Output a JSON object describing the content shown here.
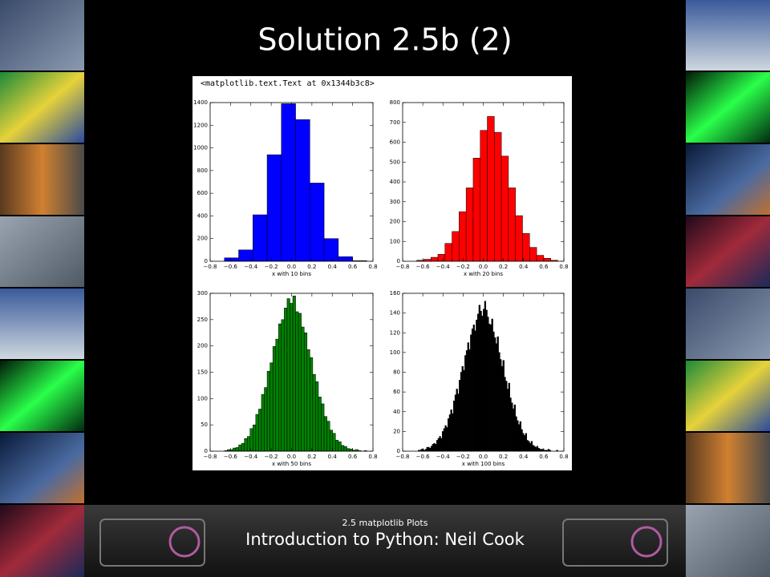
{
  "slide": {
    "title": "Solution 2.5b (2)",
    "output_text": "<matplotlib.text.Text at 0x1344b3c8>",
    "footer": {
      "subtitle": "2.5 matplotlib Plots",
      "title": "Introduction to Python: Neil Cook"
    }
  },
  "chart_data": [
    {
      "type": "histogram",
      "xlabel": "x with 10 bins",
      "color": "#0000ff",
      "bins": [
        -0.66,
        -0.52,
        -0.38,
        -0.24,
        -0.1,
        0.04,
        0.18,
        0.32,
        0.46,
        0.6,
        0.74
      ],
      "values": [
        30,
        100,
        410,
        940,
        1390,
        1250,
        690,
        200,
        40,
        5
      ],
      "xlim": [
        -0.8,
        0.8
      ],
      "ylim": [
        0,
        1400
      ],
      "xticks": [
        {
          "value": -0.8,
          "label": "−0.8"
        },
        {
          "value": -0.6,
          "label": "−0.6"
        },
        {
          "value": -0.4,
          "label": "−0.4"
        },
        {
          "value": -0.2,
          "label": "−0.2"
        },
        {
          "value": 0,
          "label": "0.0"
        },
        {
          "value": 0.2,
          "label": "0.2"
        },
        {
          "value": 0.4,
          "label": "0.4"
        },
        {
          "value": 0.6,
          "label": "0.6"
        },
        {
          "value": 0.8,
          "label": "0.8"
        }
      ],
      "yticks": [
        0,
        200,
        400,
        600,
        800,
        1000,
        1200,
        1400
      ]
    },
    {
      "type": "histogram",
      "xlabel": "x with 20 bins",
      "color": "#ff0000",
      "bins": [
        -0.66,
        -0.59,
        -0.52,
        -0.45,
        -0.38,
        -0.31,
        -0.24,
        -0.17,
        -0.1,
        -0.03,
        0.04,
        0.11,
        0.18,
        0.25,
        0.32,
        0.39,
        0.46,
        0.53,
        0.6,
        0.67,
        0.74
      ],
      "values": [
        5,
        10,
        20,
        35,
        90,
        150,
        250,
        370,
        520,
        660,
        730,
        650,
        530,
        370,
        230,
        140,
        70,
        30,
        15,
        5
      ],
      "xlim": [
        -0.8,
        0.8
      ],
      "ylim": [
        0,
        800
      ],
      "xticks": [
        {
          "value": -0.8,
          "label": "−0.8"
        },
        {
          "value": -0.6,
          "label": "−0.6"
        },
        {
          "value": -0.4,
          "label": "−0.4"
        },
        {
          "value": -0.2,
          "label": "−0.2"
        },
        {
          "value": 0,
          "label": "0.0"
        },
        {
          "value": 0.2,
          "label": "0.2"
        },
        {
          "value": 0.4,
          "label": "0.4"
        },
        {
          "value": 0.6,
          "label": "0.6"
        },
        {
          "value": 0.8,
          "label": "0.8"
        }
      ],
      "yticks": [
        0,
        100,
        200,
        300,
        400,
        500,
        600,
        700,
        800
      ]
    },
    {
      "type": "histogram",
      "xlabel": "x with 50 bins",
      "color": "#008000",
      "bins": [
        -0.66,
        -0.632,
        -0.604,
        -0.576,
        -0.548,
        -0.52,
        -0.492,
        -0.464,
        -0.436,
        -0.408,
        -0.38,
        -0.352,
        -0.324,
        -0.296,
        -0.268,
        -0.24,
        -0.212,
        -0.184,
        -0.156,
        -0.128,
        -0.1,
        -0.072,
        -0.044,
        -0.016,
        0.012,
        0.04,
        0.068,
        0.096,
        0.124,
        0.152,
        0.18,
        0.208,
        0.236,
        0.264,
        0.292,
        0.32,
        0.348,
        0.376,
        0.404,
        0.432,
        0.46,
        0.488,
        0.516,
        0.544,
        0.572,
        0.6,
        0.628,
        0.656,
        0.684,
        0.712,
        0.74
      ],
      "values": [
        1,
        3,
        3,
        6,
        7,
        12,
        15,
        24,
        28,
        43,
        50,
        70,
        80,
        108,
        121,
        152,
        168,
        199,
        213,
        242,
        250,
        272,
        290,
        281,
        295,
        265,
        262,
        236,
        225,
        193,
        178,
        146,
        132,
        103,
        90,
        66,
        57,
        40,
        34,
        21,
        18,
        11,
        9,
        5,
        4,
        2,
        3,
        1,
        0,
        1
      ],
      "xlim": [
        -0.8,
        0.8
      ],
      "ylim": [
        0,
        300
      ],
      "xticks": [
        {
          "value": -0.8,
          "label": "−0.8"
        },
        {
          "value": -0.6,
          "label": "−0.6"
        },
        {
          "value": -0.4,
          "label": "−0.4"
        },
        {
          "value": -0.2,
          "label": "−0.2"
        },
        {
          "value": 0,
          "label": "0.0"
        },
        {
          "value": 0.2,
          "label": "0.2"
        },
        {
          "value": 0.4,
          "label": "0.4"
        },
        {
          "value": 0.6,
          "label": "0.6"
        },
        {
          "value": 0.8,
          "label": "0.8"
        }
      ],
      "yticks": [
        0,
        50,
        100,
        150,
        200,
        250,
        300
      ]
    },
    {
      "type": "histogram",
      "xlabel": "x with 100 bins",
      "color": "#000000",
      "bins": [
        -0.66,
        -0.646,
        -0.632,
        -0.618,
        -0.604,
        -0.59,
        -0.576,
        -0.562,
        -0.548,
        -0.534,
        -0.52,
        -0.506,
        -0.492,
        -0.478,
        -0.464,
        -0.45,
        -0.436,
        -0.422,
        -0.408,
        -0.394,
        -0.38,
        -0.366,
        -0.352,
        -0.338,
        -0.324,
        -0.31,
        -0.296,
        -0.282,
        -0.268,
        -0.254,
        -0.24,
        -0.226,
        -0.212,
        -0.198,
        -0.184,
        -0.17,
        -0.156,
        -0.142,
        -0.128,
        -0.114,
        -0.1,
        -0.086,
        -0.072,
        -0.058,
        -0.044,
        -0.03,
        -0.016,
        -0.002,
        0.012,
        0.026,
        0.04,
        0.054,
        0.068,
        0.082,
        0.096,
        0.11,
        0.124,
        0.138,
        0.152,
        0.166,
        0.18,
        0.194,
        0.208,
        0.222,
        0.236,
        0.25,
        0.264,
        0.278,
        0.292,
        0.306,
        0.32,
        0.334,
        0.348,
        0.362,
        0.376,
        0.39,
        0.404,
        0.418,
        0.432,
        0.446,
        0.46,
        0.474,
        0.488,
        0.502,
        0.516,
        0.53,
        0.544,
        0.558,
        0.572,
        0.586,
        0.6,
        0.614,
        0.628,
        0.642,
        0.656,
        0.67,
        0.684,
        0.698,
        0.712,
        0.726,
        0.74
      ],
      "values": [
        0,
        1,
        1,
        2,
        2,
        1,
        2,
        4,
        4,
        3,
        5,
        7,
        8,
        7,
        11,
        13,
        15,
        13,
        20,
        23,
        26,
        24,
        33,
        37,
        42,
        38,
        51,
        57,
        63,
        58,
        72,
        80,
        86,
        82,
        97,
        102,
        110,
        103,
        118,
        124,
        128,
        122,
        133,
        139,
        148,
        142,
        137,
        144,
        152,
        143,
        136,
        129,
        128,
        134,
        121,
        115,
        109,
        116,
        100,
        93,
        86,
        92,
        75,
        71,
        63,
        69,
        54,
        49,
        43,
        47,
        35,
        31,
        27,
        30,
        22,
        18,
        16,
        18,
        11,
        10,
        8,
        10,
        6,
        5,
        4,
        5,
        3,
        2,
        2,
        2,
        1,
        1,
        1,
        2,
        1,
        0,
        0,
        0,
        0,
        1
      ],
      "xlim": [
        -0.8,
        0.8
      ],
      "ylim": [
        0,
        160
      ],
      "xticks": [
        {
          "value": -0.8,
          "label": "−0.8"
        },
        {
          "value": -0.6,
          "label": "−0.6"
        },
        {
          "value": -0.4,
          "label": "−0.4"
        },
        {
          "value": -0.2,
          "label": "−0.2"
        },
        {
          "value": 0,
          "label": "0.0"
        },
        {
          "value": 0.2,
          "label": "0.2"
        },
        {
          "value": 0.4,
          "label": "0.4"
        },
        {
          "value": 0.6,
          "label": "0.6"
        },
        {
          "value": 0.8,
          "label": "0.8"
        }
      ],
      "yticks": [
        0,
        20,
        40,
        60,
        80,
        100,
        120,
        140,
        160
      ]
    }
  ]
}
